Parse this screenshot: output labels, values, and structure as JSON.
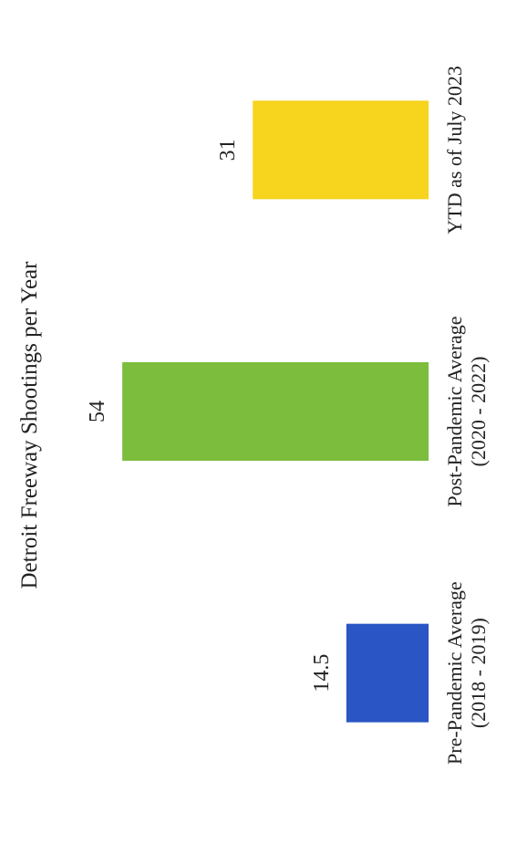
{
  "chart_data": {
    "type": "bar",
    "title": "Detroit Freeway Shootings per Year",
    "categories": [
      [
        "Pre-Pandemic Average",
        "(2018 - 2019)"
      ],
      [
        "Post-Pandemic Average",
        "(2020 - 2022)"
      ],
      [
        "YTD as of July 2023"
      ]
    ],
    "values": [
      14.5,
      54,
      31
    ],
    "data_labels": [
      "14.5",
      "54",
      "31"
    ],
    "colors": [
      "#2a55c4",
      "#7cbd3e",
      "#f7d41e"
    ],
    "value_axis": {
      "min": 0,
      "max": 60,
      "ticks": [
        0,
        10,
        20,
        30,
        40,
        50,
        60
      ]
    },
    "orientation": "rotated-90-counterclockwise",
    "grid": false,
    "legend": "none"
  }
}
